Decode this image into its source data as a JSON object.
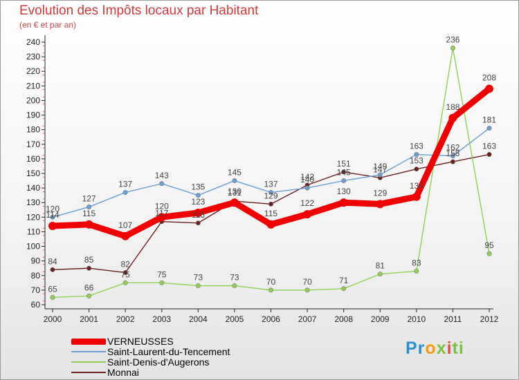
{
  "title": "Evolution des Impôts locaux par Habitant",
  "subtitle": "(en € et par an)",
  "logo": {
    "parts": [
      "Pr",
      "o",
      "x",
      "i",
      "ti"
    ]
  },
  "chart_data": {
    "type": "line",
    "x": [
      "2000",
      "2001",
      "2002",
      "2003",
      "2004",
      "2005",
      "2006",
      "2007",
      "2008",
      "2009",
      "2010",
      "2011",
      "2012"
    ],
    "ylim": [
      60,
      240
    ],
    "yticks": [
      60,
      70,
      80,
      90,
      100,
      110,
      120,
      130,
      140,
      150,
      160,
      170,
      180,
      190,
      200,
      210,
      220,
      230,
      240
    ],
    "grid": false,
    "series": [
      {
        "name": "Monnai",
        "color": "#6b1f1f",
        "values": [
          84,
          85,
          82,
          117,
          116,
          131,
          129,
          142,
          151,
          147,
          153,
          158,
          163
        ],
        "labels": [
          "84",
          "85",
          "82",
          "117",
          "116",
          "131",
          "129",
          "142",
          "151",
          "147",
          "153",
          "158",
          "163"
        ]
      },
      {
        "name": "Saint-Denis-d'Augerons",
        "color": "#8fd14f",
        "values": [
          65,
          66,
          75,
          75,
          73,
          73,
          70,
          70,
          71,
          81,
          83,
          236,
          95
        ],
        "labels": [
          "65",
          "66",
          "75",
          "75",
          "73",
          "73",
          "70",
          "70",
          "71",
          "81",
          "83",
          "236",
          "95"
        ]
      },
      {
        "name": "Saint-Laurent-du-Tencement",
        "color": "#6a9fd4",
        "values": [
          120,
          127,
          137,
          143,
          135,
          145,
          137,
          140,
          145,
          149,
          163,
          162,
          181
        ],
        "labels": [
          "120",
          "127",
          "137",
          "143",
          "135",
          "145",
          "137",
          "140",
          "145",
          "149",
          "163",
          "162",
          "181"
        ]
      },
      {
        "name": "VERNEUSSES",
        "color": "#f00000",
        "values": [
          114,
          115,
          107,
          120,
          123,
          130,
          115,
          122,
          130,
          129,
          134,
          188,
          208
        ],
        "labels": [
          "114",
          "115",
          "107",
          "120",
          "123",
          "130",
          "115",
          "122",
          "130",
          "129",
          "134",
          "188",
          "208"
        ]
      }
    ]
  },
  "legend": [
    {
      "label": "VERNEUSSES",
      "color": "#f00000",
      "thick": true
    },
    {
      "label": "Saint-Laurent-du-Tencement",
      "color": "#6a9fd4",
      "thick": false
    },
    {
      "label": "Saint-Denis-d'Augerons",
      "color": "#8fd14f",
      "thick": false
    },
    {
      "label": "Monnai",
      "color": "#6b1f1f",
      "thick": false
    }
  ]
}
